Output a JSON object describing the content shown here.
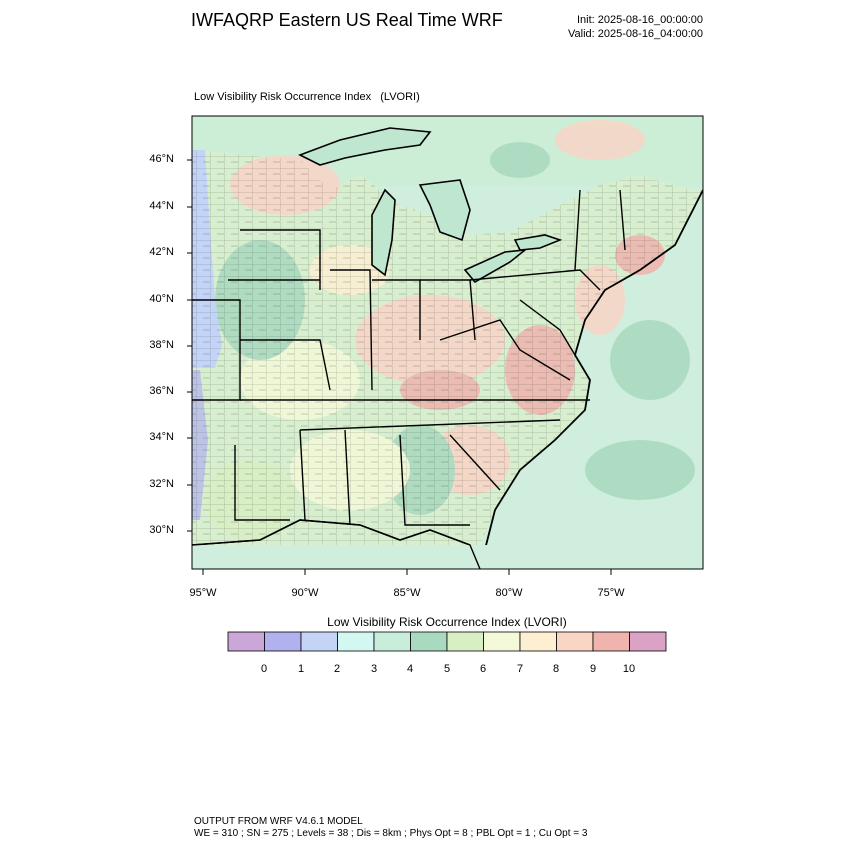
{
  "header": {
    "title": "IWFAQRP Eastern US Real Time WRF",
    "init": "Init: 2025-08-16_00:00:00",
    "valid": "Valid: 2025-08-16_04:00:00"
  },
  "map": {
    "field_title": "Low Visibility Risk Occurrence Index   (LVORI)",
    "lat_labels": [
      "46°N",
      "44°N",
      "42°N",
      "40°N",
      "38°N",
      "36°N",
      "34°N",
      "32°N",
      "30°N"
    ],
    "lon_labels": [
      "95°W",
      "90°W",
      "85°W",
      "80°W",
      "75°W"
    ],
    "colors": {
      "ocean": "#cfeedd",
      "land_base": "#d8efcf",
      "lake": "#bfe6cf",
      "state_line": "#000000",
      "county_line": "#3a3a3a"
    }
  },
  "colorbar": {
    "title": "Low Visibility Risk Occurrence Index  (LVORI)",
    "labels": [
      "0",
      "1",
      "2",
      "3",
      "4",
      "5",
      "6",
      "7",
      "8",
      "9",
      "10"
    ],
    "colors": [
      "#caa6d9",
      "#b1b1ee",
      "#c3d4f7",
      "#d3f8f2",
      "#c9eddb",
      "#a9d9bf",
      "#d8eec3",
      "#f4f9d9",
      "#fdf0d2",
      "#f9d5c6",
      "#efb4ae",
      "#daa3c6"
    ]
  },
  "footer": {
    "line1": "OUTPUT FROM WRF V4.6.1 MODEL",
    "line2": "WE = 310 ; SN = 275 ; Levels = 38 ; Dis = 8km ; Phys Opt = 8 ; PBL Opt = 1 ; Cu Opt = 3"
  }
}
